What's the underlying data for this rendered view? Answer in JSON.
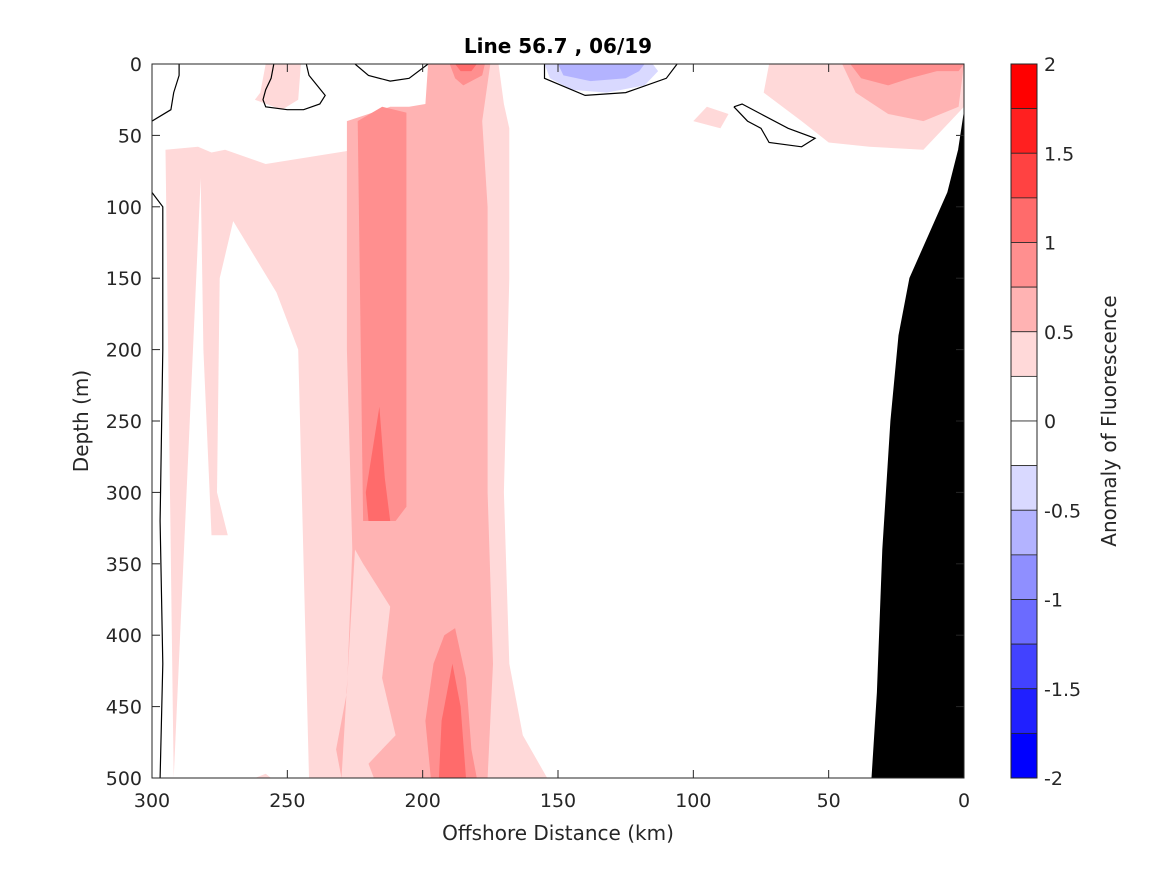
{
  "chart_data": {
    "type": "heatmap",
    "title": "Line 56.7 , 06/19",
    "xlabel": "Offshore Distance (km)",
    "ylabel": "Depth (m)",
    "xlim": [
      300,
      0
    ],
    "ylim": [
      0,
      500
    ],
    "x_reversed": true,
    "y_reversed": true,
    "x_ticks": [
      "300",
      "250",
      "200",
      "150",
      "100",
      "50",
      "0"
    ],
    "y_ticks": [
      "0",
      "50",
      "100",
      "150",
      "200",
      "250",
      "300",
      "350",
      "400",
      "450",
      "500"
    ],
    "colorbar": {
      "label": "Anomaly of Fluorescence",
      "range": [
        -2,
        2
      ],
      "tick_labels": [
        "2",
        "1.5",
        "1",
        "0.5",
        "0",
        "-0.5",
        "-1",
        "-1.5",
        "-2"
      ],
      "levels": [
        {
          "from": 1.75,
          "to": 2.0,
          "color": "#ff0000"
        },
        {
          "from": 1.5,
          "to": 1.75,
          "color": "#ff2020"
        },
        {
          "from": 1.25,
          "to": 1.5,
          "color": "#ff4242"
        },
        {
          "from": 1.0,
          "to": 1.25,
          "color": "#ff6b6b"
        },
        {
          "from": 0.75,
          "to": 1.0,
          "color": "#ff8f8f"
        },
        {
          "from": 0.5,
          "to": 0.75,
          "color": "#ffb3b3"
        },
        {
          "from": 0.25,
          "to": 0.5,
          "color": "#ffd9d9"
        },
        {
          "from": 0.0,
          "to": 0.25,
          "color": "#ffffff"
        },
        {
          "from": -0.25,
          "to": 0.0,
          "color": "#ffffff"
        },
        {
          "from": -0.5,
          "to": -0.25,
          "color": "#d9d9ff"
        },
        {
          "from": -0.75,
          "to": -0.5,
          "color": "#b3b3ff"
        },
        {
          "from": -1.0,
          "to": -0.75,
          "color": "#8f8fff"
        },
        {
          "from": -1.25,
          "to": -1.0,
          "color": "#6b6bff"
        },
        {
          "from": -1.5,
          "to": -1.25,
          "color": "#4242ff"
        },
        {
          "from": -1.75,
          "to": -1.5,
          "color": "#2020ff"
        },
        {
          "from": -2.0,
          "to": -1.75,
          "color": "#0000ff"
        }
      ]
    },
    "regions": [
      {
        "level": 0.375,
        "points": [
          [
            292,
            500
          ],
          [
            295,
            60
          ],
          [
            283,
            58
          ],
          [
            278,
            62
          ],
          [
            273,
            60
          ],
          [
            258,
            70
          ],
          [
            225,
            60
          ],
          [
            205,
            55
          ],
          [
            200,
            48
          ],
          [
            195,
            28
          ],
          [
            190,
            0
          ],
          [
            172,
            0
          ],
          [
            170,
            28
          ],
          [
            168,
            45
          ],
          [
            168,
            150
          ],
          [
            170,
            300
          ],
          [
            168,
            420
          ],
          [
            163,
            470
          ],
          [
            154,
            500
          ],
          [
            242,
            500
          ],
          [
            246,
            200
          ],
          [
            254,
            160
          ],
          [
            270,
            110
          ],
          [
            275,
            150
          ],
          [
            276,
            300
          ],
          [
            272,
            330
          ],
          [
            278,
            330
          ],
          [
            281,
            200
          ],
          [
            282,
            80
          ]
        ]
      },
      {
        "level": 0.375,
        "points": [
          [
            258,
            0
          ],
          [
            260,
            20
          ],
          [
            262,
            25
          ],
          [
            252,
            32
          ],
          [
            246,
            25
          ],
          [
            245,
            0
          ]
        ]
      },
      {
        "level": 0.375,
        "points": [
          [
            95,
            30
          ],
          [
            100,
            40
          ],
          [
            90,
            45
          ],
          [
            87,
            35
          ]
        ]
      },
      {
        "level": 0.375,
        "points": [
          [
            72,
            0
          ],
          [
            74,
            20
          ],
          [
            60,
            40
          ],
          [
            50,
            55
          ],
          [
            35,
            58
          ],
          [
            15,
            60
          ],
          [
            5,
            40
          ],
          [
            0,
            30
          ],
          [
            0,
            0
          ]
        ]
      },
      {
        "level": 0.375,
        "points": [
          [
            262,
            500
          ],
          [
            258,
            497
          ],
          [
            256,
            500
          ]
        ]
      },
      {
        "level": 0.625,
        "points": [
          [
            230,
            500
          ],
          [
            232,
            480
          ],
          [
            228,
            440
          ],
          [
            226,
            340
          ],
          [
            228,
            200
          ],
          [
            228,
            40
          ],
          [
            212,
            30
          ],
          [
            205,
            30
          ],
          [
            199,
            28
          ],
          [
            198,
            0
          ],
          [
            175,
            0
          ],
          [
            178,
            40
          ],
          [
            176,
            100
          ],
          [
            176,
            300
          ],
          [
            174,
            420
          ],
          [
            176,
            500
          ],
          [
            218,
            500
          ],
          [
            220,
            490
          ],
          [
            210,
            470
          ],
          [
            215,
            430
          ],
          [
            212,
            380
          ],
          [
            222,
            350
          ],
          [
            225,
            340
          ]
        ]
      },
      {
        "level": 0.625,
        "points": [
          [
            45,
            0
          ],
          [
            40,
            20
          ],
          [
            28,
            35
          ],
          [
            15,
            40
          ],
          [
            2,
            30
          ],
          [
            0,
            0
          ]
        ]
      },
      {
        "level": 0.875,
        "points": [
          [
            222,
            320
          ],
          [
            224,
            40
          ],
          [
            215,
            30
          ],
          [
            206,
            34
          ],
          [
            206,
            310
          ],
          [
            210,
            320
          ]
        ]
      },
      {
        "level": 0.875,
        "points": [
          [
            197,
            500
          ],
          [
            199,
            460
          ],
          [
            196,
            420
          ],
          [
            192,
            400
          ],
          [
            188,
            395
          ],
          [
            184,
            430
          ],
          [
            182,
            480
          ],
          [
            180,
            500
          ]
        ]
      },
      {
        "level": 0.875,
        "points": [
          [
            190,
            0
          ],
          [
            188,
            10
          ],
          [
            185,
            15
          ],
          [
            178,
            8
          ],
          [
            177,
            0
          ]
        ]
      },
      {
        "level": 0.875,
        "points": [
          [
            42,
            0
          ],
          [
            38,
            10
          ],
          [
            28,
            15
          ],
          [
            20,
            10
          ],
          [
            10,
            5
          ],
          [
            2,
            5
          ],
          [
            0,
            0
          ]
        ]
      },
      {
        "level": 1.125,
        "points": [
          [
            220,
            320
          ],
          [
            221,
            300
          ],
          [
            216,
            240
          ],
          [
            214,
            290
          ],
          [
            212,
            320
          ]
        ]
      },
      {
        "level": 1.125,
        "points": [
          [
            194,
            500
          ],
          [
            193,
            460
          ],
          [
            189,
            420
          ],
          [
            186,
            450
          ],
          [
            184,
            500
          ]
        ]
      },
      {
        "level": 1.125,
        "points": [
          [
            188,
            0
          ],
          [
            186,
            5
          ],
          [
            182,
            5
          ],
          [
            180,
            0
          ]
        ]
      },
      {
        "level": -0.375,
        "points": [
          [
            155,
            0
          ],
          [
            153,
            10
          ],
          [
            145,
            18
          ],
          [
            132,
            20
          ],
          [
            118,
            15
          ],
          [
            113,
            5
          ],
          [
            115,
            0
          ]
        ]
      },
      {
        "level": -0.625,
        "points": [
          [
            150,
            0
          ],
          [
            148,
            8
          ],
          [
            138,
            12
          ],
          [
            125,
            10
          ],
          [
            120,
            5
          ],
          [
            118,
            0
          ]
        ]
      }
    ],
    "contours_zero": [
      [
        [
          300,
          40
        ],
        [
          293,
          32
        ],
        [
          292,
          20
        ],
        [
          290,
          8
        ],
        [
          290,
          0
        ]
      ],
      [
        [
          255,
          0
        ],
        [
          256,
          10
        ],
        [
          258,
          18
        ],
        [
          259,
          25
        ],
        [
          258,
          30
        ],
        [
          250,
          32
        ],
        [
          244,
          32
        ],
        [
          238,
          28
        ],
        [
          236,
          22
        ],
        [
          239,
          15
        ],
        [
          242,
          8
        ],
        [
          243,
          0
        ]
      ],
      [
        [
          300,
          90
        ],
        [
          296,
          100
        ],
        [
          296,
          200
        ],
        [
          297,
          320
        ],
        [
          296,
          420
        ],
        [
          297,
          500
        ]
      ],
      [
        [
          225,
          0
        ],
        [
          220,
          8
        ],
        [
          212,
          12
        ],
        [
          205,
          10
        ],
        [
          198,
          0
        ]
      ],
      [
        [
          155,
          0
        ],
        [
          155,
          10
        ],
        [
          140,
          22
        ],
        [
          125,
          20
        ],
        [
          110,
          10
        ],
        [
          106,
          0
        ]
      ],
      [
        [
          85,
          30
        ],
        [
          80,
          40
        ],
        [
          75,
          45
        ],
        [
          72,
          55
        ],
        [
          60,
          58
        ],
        [
          55,
          52
        ],
        [
          65,
          45
        ],
        [
          75,
          35
        ],
        [
          82,
          28
        ],
        [
          85,
          30
        ]
      ]
    ],
    "bathymetry": [
      [
        34,
        500
      ],
      [
        32,
        440
      ],
      [
        30,
        340
      ],
      [
        27,
        250
      ],
      [
        24,
        190
      ],
      [
        20,
        150
      ],
      [
        13,
        120
      ],
      [
        6,
        90
      ],
      [
        2,
        60
      ],
      [
        0,
        35
      ],
      [
        0,
        500
      ]
    ]
  }
}
